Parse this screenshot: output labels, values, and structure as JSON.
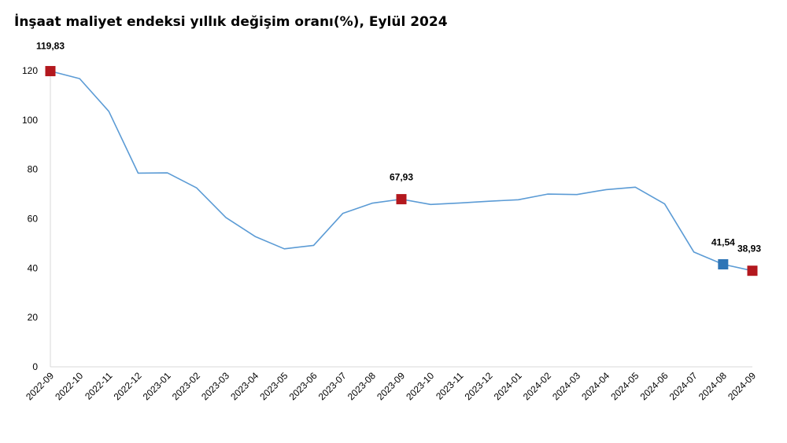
{
  "chart_data": {
    "type": "line",
    "title": "İnşaat maliyet endeksi yıllık değişim oranı(%), Eylül 2024",
    "xlabel": "",
    "ylabel": "",
    "ylim": [
      0,
      120
    ],
    "yticks": [
      "0",
      "20",
      "40",
      "60",
      "80",
      "100",
      "120"
    ],
    "grid": false,
    "categories": [
      "2022-09",
      "2022-10",
      "2022-11",
      "2022-12",
      "2023-01",
      "2023-02",
      "2023-03",
      "2023-04",
      "2023-05",
      "2023-06",
      "2023-07",
      "2023-08",
      "2023-09",
      "2023-10",
      "2023-11",
      "2023-12",
      "2024-01",
      "2024-02",
      "2024-03",
      "2024-04",
      "2024-05",
      "2024-06",
      "2024-07",
      "2024-08",
      "2024-09"
    ],
    "series": [
      {
        "color": "#5b9bd5",
        "values": [
          119.83,
          116.8,
          103.5,
          78.5,
          78.6,
          72.5,
          60.5,
          52.8,
          47.8,
          49.2,
          62.2,
          66.3,
          67.93,
          65.8,
          66.4,
          67.1,
          67.7,
          70.0,
          69.8,
          71.8,
          72.8,
          66.0,
          46.5,
          41.54,
          38.93
        ]
      }
    ],
    "highlights": [
      {
        "index": 0,
        "label": "119,83",
        "color": "#b3181e"
      },
      {
        "index": 12,
        "label": "67,93",
        "color": "#b3181e"
      },
      {
        "index": 23,
        "label": "41,54",
        "color": "#2e75b6"
      },
      {
        "index": 24,
        "label": "38,93",
        "color": "#b3181e"
      }
    ]
  }
}
